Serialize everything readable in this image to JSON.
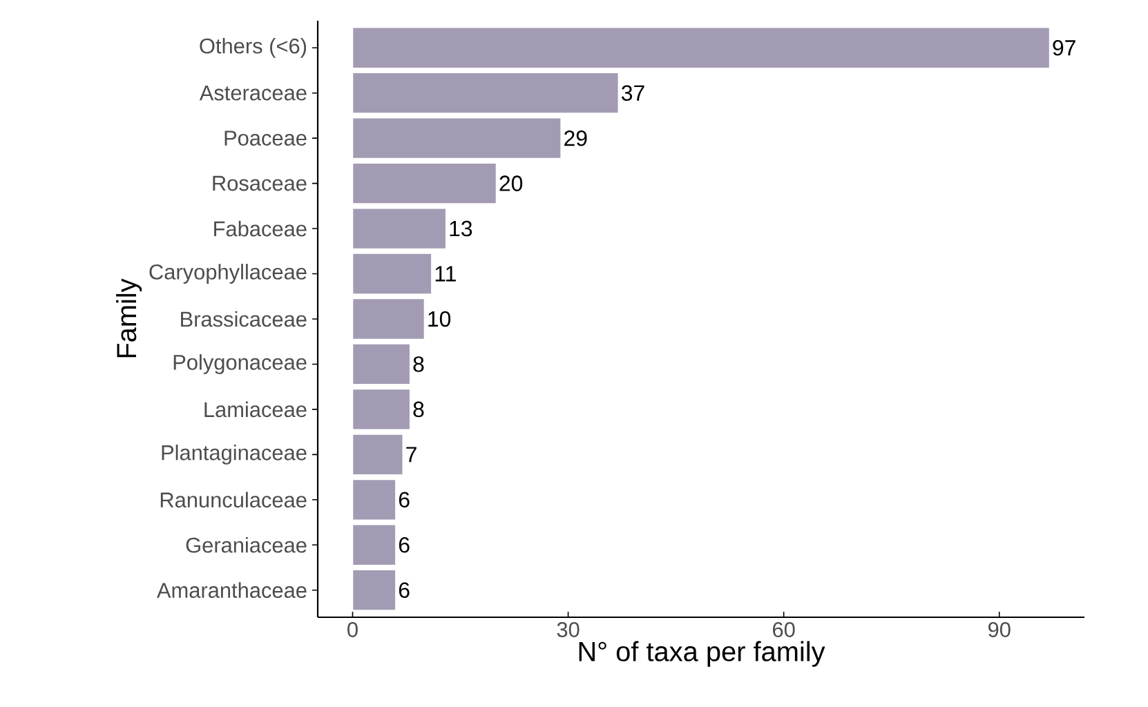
{
  "chart_data": {
    "type": "bar",
    "orientation": "horizontal",
    "xlabel": "N° of taxa per family",
    "ylabel": "Family",
    "categories": [
      "Others (<6)",
      "Asteraceae",
      "Poaceae",
      "Rosaceae",
      "Fabaceae",
      "Caryophyllaceae",
      "Brassicaceae",
      "Polygonaceae",
      "Lamiaceae",
      "Plantaginaceae",
      "Ranunculaceae",
      "Geraniaceae",
      "Amaranthaceae"
    ],
    "values": [
      97,
      37,
      29,
      20,
      13,
      11,
      10,
      8,
      8,
      7,
      6,
      6,
      6
    ],
    "color": "#a39bb3",
    "data_labels": true,
    "grid": false,
    "xlim": [
      -4.85,
      101.85
    ],
    "xticks": [
      0,
      30,
      60,
      90
    ]
  }
}
